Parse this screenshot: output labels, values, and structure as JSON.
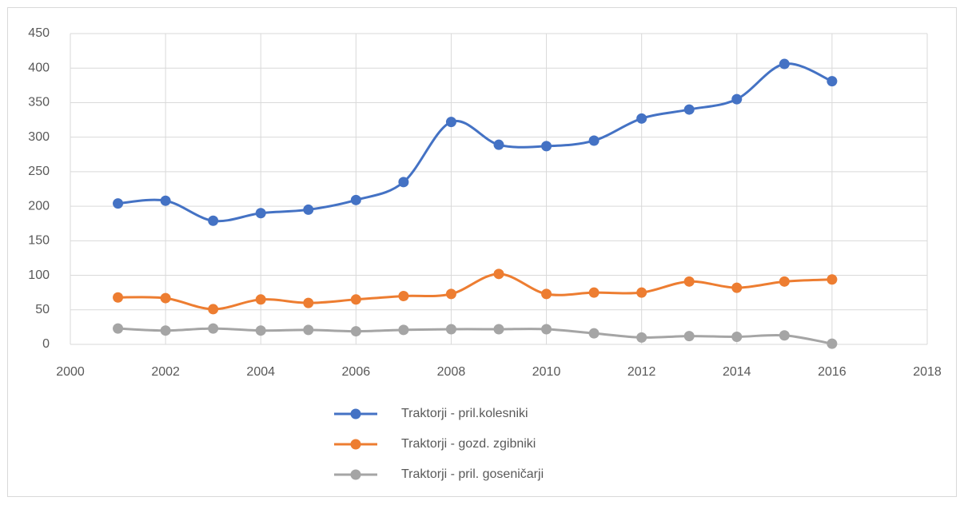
{
  "chart_data": {
    "type": "line",
    "smooth": true,
    "grid": true,
    "legend": "bottom",
    "x": [
      2001,
      2002,
      2003,
      2004,
      2005,
      2006,
      2007,
      2008,
      2009,
      2010,
      2011,
      2012,
      2013,
      2014,
      2015,
      2016
    ],
    "xlim": [
      2000,
      2018
    ],
    "xticks": [
      2000,
      2002,
      2004,
      2006,
      2008,
      2010,
      2012,
      2014,
      2016,
      2018
    ],
    "ylim": [
      0,
      450
    ],
    "yticks": [
      0,
      50,
      100,
      150,
      200,
      250,
      300,
      350,
      400,
      450
    ],
    "series": [
      {
        "name": "Traktorji - pril.kolesniki",
        "color": "#4472c4",
        "values": [
          204,
          208,
          179,
          190,
          195,
          209,
          235,
          322,
          289,
          287,
          295,
          327,
          340,
          355,
          406,
          381
        ]
      },
      {
        "name": "Traktorji - gozd. zgibniki",
        "color": "#ed7d31",
        "values": [
          68,
          67,
          51,
          65,
          60,
          65,
          70,
          73,
          102,
          73,
          75,
          75,
          91,
          82,
          91,
          94
        ]
      },
      {
        "name": "Traktorji - pril. goseničarji",
        "color": "#a5a5a5",
        "values": [
          23,
          20,
          23,
          20,
          21,
          19,
          21,
          22,
          22,
          22,
          16,
          10,
          12,
          11,
          13,
          1
        ]
      }
    ]
  }
}
